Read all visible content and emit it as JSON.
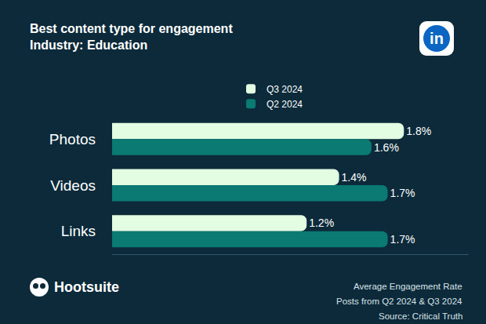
{
  "chart_data": {
    "type": "bar",
    "orientation": "horizontal",
    "title": "Best content type for engagement",
    "subtitle": "Industry: Education",
    "categories": [
      "Photos",
      "Videos",
      "Links"
    ],
    "series": [
      {
        "name": "Q3 2024",
        "color": "#e3fde2",
        "values": [
          1.8,
          1.4,
          1.2
        ],
        "value_labels": [
          "1.8%",
          "1.4%",
          "1.2%"
        ]
      },
      {
        "name": "Q2 2024",
        "color": "#0a7a72",
        "values": [
          1.6,
          1.7,
          1.7
        ],
        "value_labels": [
          "1.6%",
          "1.7%",
          "1.7%"
        ]
      }
    ],
    "xlim": [
      0,
      2.2
    ],
    "data_labels": true,
    "tick_labels": "y",
    "grid": false,
    "legend": "top",
    "annotations": [
      "Average Engagement Rate",
      "Posts from Q2 2024 & Q3 2024",
      "Source: Critical Truth"
    ],
    "logo": "Hootsuite",
    "badge": "in"
  }
}
